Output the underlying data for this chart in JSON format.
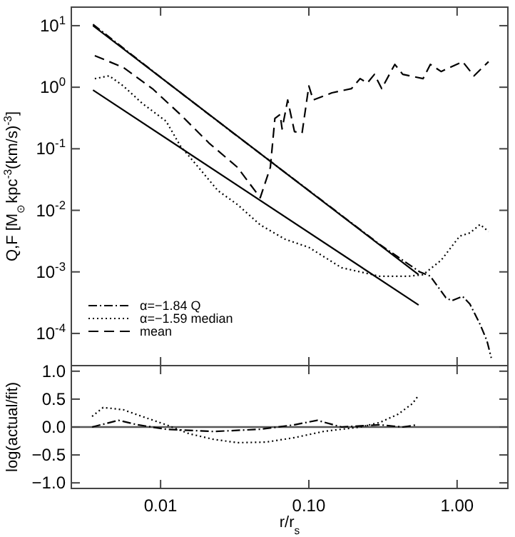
{
  "chart_data": [
    {
      "type": "line",
      "ylabel": "Q,F [M$_{⊙}$kpc$^{-3}$(km/s)$^{-3}$]",
      "log": "xy",
      "tick_labels": "y",
      "legend": "bottom left",
      "xlim": [
        0.0025,
        2.2
      ],
      "ylim": [
        3e-05,
        20
      ],
      "xticks": [
        {
          "value": 0.01,
          "label": null
        },
        {
          "value": 0.1,
          "label": null
        },
        {
          "value": 1,
          "label": null
        }
      ],
      "yticks": [
        {
          "value": 10,
          "label": "10$^{1}$"
        },
        {
          "value": 1,
          "label": "10$^{0}$"
        },
        {
          "value": 0.1,
          "label": "10$^{-1}$"
        },
        {
          "value": 0.01,
          "label": "10$^{-2}$"
        },
        {
          "value": 0.001,
          "label": "10$^{-3}$"
        },
        {
          "value": 0.0001,
          "label": "10$^{-4}$"
        }
      ],
      "series": [
        {
          "name": "α=−1.84 Q",
          "color": "#000000",
          "line_style": "dashdot",
          "x": [
            0.0035,
            0.01,
            0.03,
            0.1,
            0.3,
            0.56,
            0.66,
            0.84,
            0.92,
            1.09,
            1.22,
            1.43,
            1.59,
            1.7
          ],
          "values": [
            10.5,
            1.45,
            0.19,
            0.021,
            0.0028,
            0.001,
            0.00085,
            0.00038,
            0.00034,
            0.0004,
            0.0003,
            0.00014,
            7.6e-05,
            4e-05
          ]
        },
        {
          "name": "α=−1.59 median",
          "color": "#000000",
          "line_style": "dotted",
          "x": [
            0.0036,
            0.0045,
            0.0056,
            0.0075,
            0.0109,
            0.0136,
            0.018,
            0.0243,
            0.033,
            0.047,
            0.069,
            0.1,
            0.166,
            0.3,
            0.47,
            0.59,
            0.78,
            1.04,
            1.22,
            1.43,
            1.63
          ],
          "values": [
            1.38,
            1.53,
            1.05,
            0.55,
            0.28,
            0.111,
            0.05,
            0.021,
            0.0124,
            0.0058,
            0.0034,
            0.0025,
            0.00117,
            0.00085,
            0.00085,
            0.0009,
            0.00154,
            0.0038,
            0.0043,
            0.0059,
            0.0045
          ]
        },
        {
          "name": "mean",
          "color": "#000000",
          "line_style": "dashed",
          "x": [
            0.0036,
            0.0056,
            0.0088,
            0.0136,
            0.0212,
            0.033,
            0.047,
            0.055,
            0.059,
            0.064,
            0.066,
            0.072,
            0.08,
            0.09,
            0.1,
            0.107,
            0.143,
            0.194,
            0.222,
            0.248,
            0.277,
            0.31,
            0.38,
            0.43,
            0.59,
            0.66,
            0.78,
            1.09,
            1.3,
            1.63
          ],
          "values": [
            3.25,
            2.1,
            0.95,
            0.36,
            0.124,
            0.05,
            0.016,
            0.05,
            0.31,
            0.36,
            0.21,
            0.62,
            0.19,
            0.18,
            1.05,
            0.62,
            0.81,
            0.95,
            1.38,
            1.17,
            1.62,
            0.95,
            2.35,
            1.62,
            1.38,
            2.35,
            1.8,
            2.6,
            1.53,
            2.6
          ]
        },
        {
          "color": "#000000",
          "line_style": "solid",
          "x": [
            0.0035,
            0.55
          ],
          "values": [
            10,
            0.0009
          ]
        },
        {
          "color": "#000000",
          "line_style": "solid",
          "x": [
            0.0035,
            0.55
          ],
          "values": [
            0.9,
            0.00029
          ]
        }
      ]
    },
    {
      "type": "line",
      "xlabel": "r/r$_{s}$",
      "ylabel": "log(actual/fit)",
      "log": "x",
      "xlim": [
        0.0025,
        2.2
      ],
      "ylim": [
        -1.1,
        1.1
      ],
      "xticks": [
        {
          "value": 0.01,
          "label": "0.01"
        },
        {
          "value": 0.1,
          "label": "0.10"
        },
        {
          "value": 1,
          "label": "1.00"
        }
      ],
      "yticks": [
        {
          "value": 1,
          "label": "1.0"
        },
        {
          "value": 0.5,
          "label": "0.5"
        },
        {
          "value": 0,
          "label": "0.0"
        },
        {
          "value": -0.5,
          "label": "−0.5"
        },
        {
          "value": -1,
          "label": "−1.0"
        }
      ],
      "ref_lines": [
        {
          "axis": "y",
          "value": 0,
          "color": "#555555"
        }
      ],
      "series": [
        {
          "color": "#000000",
          "line_style": "dashdot",
          "x": [
            0.00345,
            0.0052,
            0.007,
            0.0109,
            0.0227,
            0.047,
            0.08,
            0.114,
            0.166,
            0.3,
            0.43,
            0.54
          ],
          "values": [
            0,
            0.12,
            0.04,
            -0.04,
            -0.08,
            -0.04,
            0.04,
            0.12,
            0,
            0.04,
            0,
            0.04
          ]
        },
        {
          "color": "#000000",
          "line_style": "dotted",
          "x": [
            0.00345,
            0.0041,
            0.0056,
            0.0075,
            0.0109,
            0.0156,
            0.0227,
            0.033,
            0.0515,
            0.08,
            0.125,
            0.166,
            0.222,
            0.3,
            0.4,
            0.5,
            0.54
          ],
          "values": [
            0.19,
            0.35,
            0.31,
            0.19,
            0.04,
            -0.12,
            -0.22,
            -0.28,
            -0.27,
            -0.19,
            -0.08,
            -0.04,
            0,
            0.08,
            0.23,
            0.42,
            0.54
          ]
        }
      ]
    }
  ]
}
